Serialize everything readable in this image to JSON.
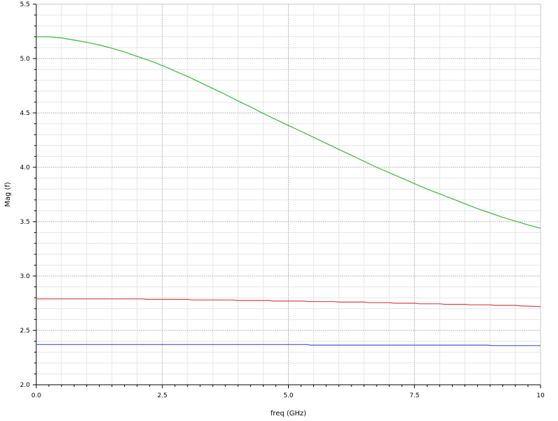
{
  "chart_data": {
    "type": "line",
    "title": "",
    "xlabel": "freq (GHz)",
    "ylabel": "Mag (f)",
    "xlim": [
      0,
      10
    ],
    "ylim": [
      2.0,
      5.5
    ],
    "x_ticks": [
      0.0,
      2.5,
      5.0,
      7.5,
      10
    ],
    "x_tick_labels": [
      "0.0",
      "2.5",
      "5.0",
      "7.5",
      "10"
    ],
    "y_ticks": [
      2.0,
      2.5,
      3.0,
      3.5,
      4.0,
      4.5,
      5.0,
      5.5
    ],
    "y_tick_labels": [
      "2.0",
      "2.5",
      "3.0",
      "3.5",
      "4.0",
      "4.5",
      "5.0",
      "5.5"
    ],
    "grid": true,
    "legend": "none",
    "series": [
      {
        "color": "#33bb33",
        "x": [
          0.0,
          0.25,
          0.5,
          0.75,
          1.0,
          1.25,
          1.5,
          1.75,
          2.0,
          2.25,
          2.5,
          2.75,
          3.0,
          3.25,
          3.5,
          3.75,
          4.0,
          4.25,
          4.5,
          4.75,
          5.0,
          5.25,
          5.5,
          5.75,
          6.0,
          6.25,
          6.5,
          6.75,
          7.0,
          7.25,
          7.5,
          7.75,
          8.0,
          8.25,
          8.5,
          8.75,
          9.0,
          9.25,
          9.5,
          9.75,
          10.0
        ],
        "y": [
          5.2,
          5.2,
          5.19,
          5.17,
          5.15,
          5.125,
          5.095,
          5.06,
          5.02,
          4.98,
          4.935,
          4.885,
          4.835,
          4.78,
          4.725,
          4.67,
          4.61,
          4.555,
          4.495,
          4.44,
          4.385,
          4.33,
          4.275,
          4.22,
          4.165,
          4.11,
          4.055,
          4.0,
          3.95,
          3.9,
          3.85,
          3.8,
          3.755,
          3.71,
          3.665,
          3.62,
          3.58,
          3.54,
          3.505,
          3.47,
          3.44
        ]
      },
      {
        "color": "#dd4444",
        "x": [
          0.0,
          2.1,
          2.2,
          3.0,
          3.1,
          3.9,
          4.0,
          4.6,
          4.7,
          5.3,
          5.4,
          5.9,
          6.0,
          6.5,
          6.6,
          7.0,
          7.1,
          7.5,
          7.6,
          8.0,
          8.1,
          8.5,
          8.6,
          9.0,
          9.1,
          9.5,
          9.6,
          10.0
        ],
        "y": [
          2.79,
          2.79,
          2.785,
          2.785,
          2.78,
          2.78,
          2.775,
          2.775,
          2.77,
          2.77,
          2.765,
          2.765,
          2.76,
          2.76,
          2.755,
          2.755,
          2.75,
          2.75,
          2.745,
          2.745,
          2.74,
          2.74,
          2.735,
          2.735,
          2.73,
          2.73,
          2.725,
          2.72
        ]
      },
      {
        "color": "#4455dd",
        "x": [
          0.0,
          5.35,
          5.45,
          8.95,
          9.05,
          10.0
        ],
        "y": [
          2.37,
          2.37,
          2.365,
          2.365,
          2.36,
          2.36
        ]
      }
    ]
  }
}
